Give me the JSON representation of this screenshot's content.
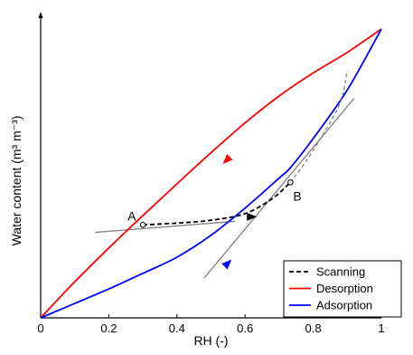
{
  "chart_data": {
    "type": "line",
    "title": "",
    "xlabel": "RH (-)",
    "ylabel": "Water content (m³ m⁻³)",
    "xlim": [
      0,
      1
    ],
    "x_ticks": [
      "0",
      "0.2",
      "0.4",
      "0.6",
      "0.8",
      "1"
    ],
    "y_ticks": [],
    "grid": false,
    "legend_position": "bottom-right",
    "legend_entries": [
      "Scanning",
      "Desorption",
      "Adsorption"
    ],
    "series": [
      {
        "name": "Desorption",
        "color": "#ff0000",
        "style": "solid",
        "x": [
          0,
          0.1,
          0.2,
          0.3,
          0.4,
          0.5,
          0.6,
          0.7,
          0.8,
          0.9,
          1.0
        ],
        "y": [
          0,
          0.125,
          0.242,
          0.354,
          0.464,
          0.572,
          0.675,
          0.768,
          0.848,
          0.919,
          1.0
        ]
      },
      {
        "name": "Adsorption",
        "color": "#0000ff",
        "style": "solid",
        "x": [
          0,
          0.1,
          0.2,
          0.3,
          0.4,
          0.5,
          0.6,
          0.7,
          0.733,
          0.8,
          0.9,
          1.0
        ],
        "y": [
          0,
          0.05,
          0.1,
          0.154,
          0.21,
          0.286,
          0.38,
          0.484,
          0.52,
          0.621,
          0.789,
          1.0
        ]
      },
      {
        "name": "Scanning",
        "color": "#000000",
        "style": "dashed",
        "x": [
          0.3,
          0.4,
          0.5,
          0.6,
          0.68,
          0.733
        ],
        "y": [
          0.322,
          0.328,
          0.338,
          0.361,
          0.413,
          0.469
        ]
      },
      {
        "color": "#888888",
        "style": "dashed",
        "x": [
          0.733,
          0.78,
          0.83,
          0.88,
          0.9
        ],
        "y": [
          0.469,
          0.544,
          0.638,
          0.747,
          0.857
        ]
      }
    ],
    "tangent_lines": [
      {
        "color": "#808080",
        "x": [
          0.16,
          0.57
        ],
        "y": [
          0.296,
          0.334
        ]
      },
      {
        "color": "#808080",
        "x": [
          0.48,
          0.92
        ],
        "y": [
          0.138,
          0.76
        ]
      }
    ],
    "arrows": [
      {
        "series": "Desorption",
        "x": 0.545,
        "y": 0.545,
        "direction": "down-left"
      },
      {
        "series": "Adsorption",
        "x": 0.55,
        "y": 0.19,
        "direction": "up-right"
      },
      {
        "series": "Scanning",
        "x": 0.62,
        "y": 0.35,
        "direction": "right"
      }
    ],
    "points": [
      {
        "label": "A",
        "x": 0.3,
        "y": 0.322
      },
      {
        "label": "B",
        "x": 0.733,
        "y": 0.469
      }
    ]
  }
}
